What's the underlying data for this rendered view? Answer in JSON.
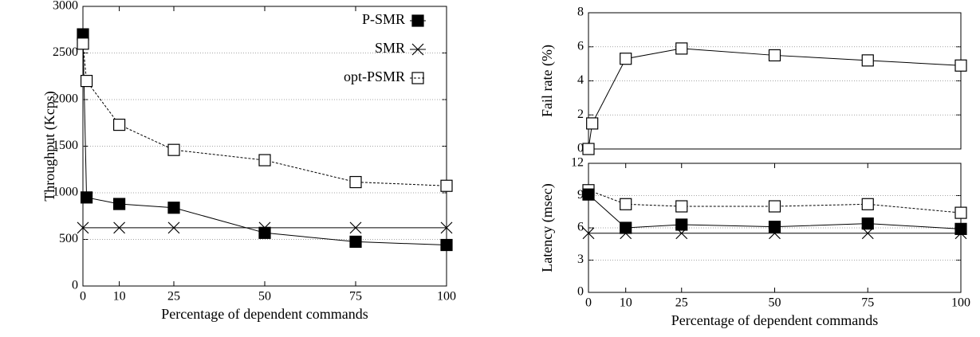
{
  "chart_data": [
    {
      "type": "line",
      "ylabel": "Throughput (Kcps)",
      "xlabel": "Percentage of dependent commands",
      "xlim": [
        0,
        100
      ],
      "xticks": [
        0,
        10,
        25,
        50,
        75,
        100
      ],
      "ylim": [
        0,
        3000
      ],
      "yticks": [
        0,
        500,
        1000,
        1500,
        2000,
        2500,
        3000
      ],
      "grid": true,
      "legend": "top-right",
      "series": [
        {
          "name": "P-SMR",
          "color": "#000000",
          "marker": "filled-square",
          "dash": "solid",
          "x": [
            0,
            1,
            10,
            25,
            50,
            75,
            100
          ],
          "values": [
            2700,
            950,
            880,
            840,
            570,
            475,
            440
          ]
        },
        {
          "name": "SMR",
          "color": "#000000",
          "marker": "x",
          "dash": "solid",
          "x": [
            0,
            10,
            25,
            50,
            75,
            100
          ],
          "values": [
            625,
            625,
            625,
            625,
            625,
            625
          ]
        },
        {
          "name": "opt-PSMR",
          "color": "#000000",
          "marker": "open-square",
          "dash": "dashed",
          "x": [
            0,
            1,
            10,
            25,
            50,
            75,
            100
          ],
          "values": [
            2600,
            2200,
            1730,
            1460,
            1350,
            1115,
            1075
          ]
        }
      ]
    },
    {
      "type": "line",
      "ylabel": "Fail rate (%)",
      "xlim": [
        0,
        100
      ],
      "ylim": [
        0,
        8
      ],
      "yticks": [
        0,
        2,
        4,
        6,
        8
      ],
      "grid": true,
      "series": [
        {
          "color": "#000000",
          "marker": "open-square",
          "dash": "solid",
          "x": [
            0,
            1,
            10,
            25,
            50,
            75,
            100
          ],
          "values": [
            0,
            1.5,
            5.3,
            5.9,
            5.5,
            5.2,
            4.9
          ]
        }
      ]
    },
    {
      "type": "line",
      "ylabel": "Latency (msec)",
      "xlabel": "Percentage of dependent commands",
      "xlim": [
        0,
        100
      ],
      "xticks": [
        0,
        10,
        25,
        50,
        75,
        100
      ],
      "ylim": [
        0,
        12
      ],
      "yticks": [
        0,
        3,
        6,
        9,
        12
      ],
      "grid": true,
      "series": [
        {
          "color": "#000000",
          "marker": "open-square",
          "dash": "dashed",
          "x": [
            0,
            10,
            25,
            50,
            75,
            100
          ],
          "values": [
            9.5,
            8.2,
            8.0,
            8.0,
            8.2,
            7.4
          ]
        },
        {
          "color": "#000000",
          "marker": "filled-square",
          "dash": "solid",
          "x": [
            0,
            10,
            25,
            50,
            75,
            100
          ],
          "values": [
            9.1,
            6.0,
            6.3,
            6.1,
            6.4,
            5.9
          ]
        },
        {
          "color": "#000000",
          "marker": "x",
          "dash": "solid",
          "x": [
            0,
            10,
            25,
            50,
            75,
            100
          ],
          "values": [
            5.5,
            5.5,
            5.5,
            5.5,
            5.5,
            5.5
          ]
        }
      ]
    }
  ]
}
